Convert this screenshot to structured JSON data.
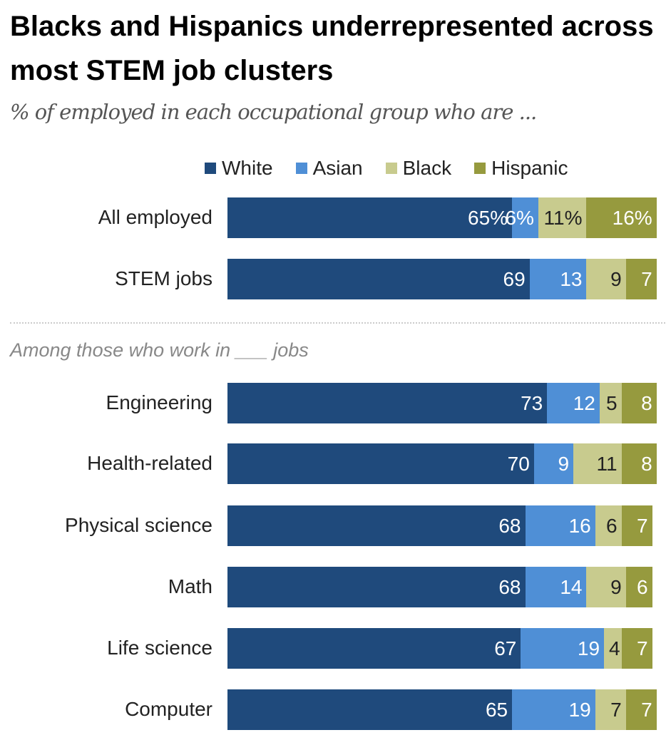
{
  "title": "Blacks and Hispanics underrepresented across most STEM job clusters",
  "subtitle": "% of employed in each occupational group who are ...",
  "note": "Among those who work in ___ jobs",
  "colors": {
    "White": "#1f4a7c",
    "Asian": "#4f8fd6",
    "Black": "#c8cb8e",
    "Hispanic": "#969a3e"
  },
  "chart_data": {
    "type": "bar",
    "orientation": "horizontal",
    "stacked": true,
    "categories": [
      "All employed",
      "STEM jobs",
      "Engineering",
      "Health-related",
      "Physical science",
      "Math",
      "Life science",
      "Computer"
    ],
    "series": [
      {
        "name": "White",
        "values": [
          65,
          69,
          73,
          70,
          68,
          68,
          67,
          65
        ]
      },
      {
        "name": "Asian",
        "values": [
          6,
          13,
          12,
          9,
          16,
          14,
          19,
          19
        ]
      },
      {
        "name": "Black",
        "values": [
          11,
          9,
          5,
          11,
          6,
          9,
          4,
          7
        ]
      },
      {
        "name": "Hispanic",
        "values": [
          16,
          7,
          8,
          8,
          7,
          6,
          7,
          7
        ]
      }
    ],
    "first_row_suffix": "%",
    "legend": "top",
    "xlim": [
      0,
      100
    ]
  }
}
